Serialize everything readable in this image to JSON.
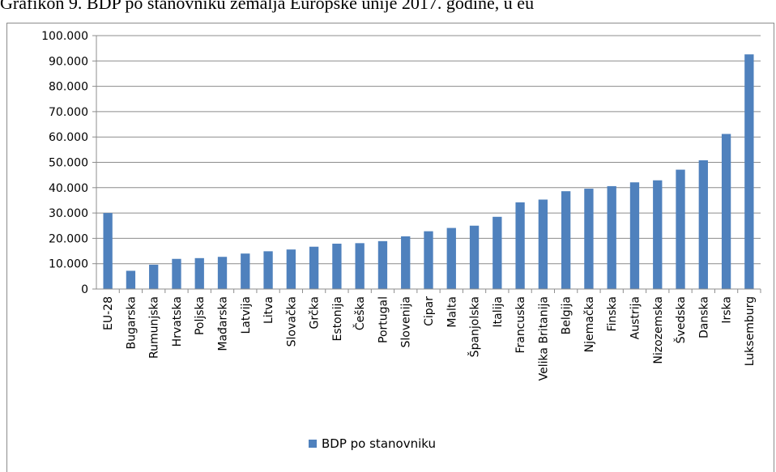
{
  "caption": "Grafikon 9. BDP po stanovniku zemalja Europske unije 2017. godine, u eu",
  "chart_data": {
    "type": "bar",
    "title": "",
    "xlabel": "",
    "ylabel": "",
    "ylim": [
      0,
      100000
    ],
    "yticks": [
      "0",
      "10.000",
      "20.000",
      "30.000",
      "40.000",
      "50.000",
      "60.000",
      "70.000",
      "80.000",
      "90.000",
      "100.000"
    ],
    "grid": true,
    "legend_position": "bottom",
    "color": "#4f81bd",
    "categories": [
      "EU-28",
      "Bugarska",
      "Rumunjska",
      "Hrvatska",
      "Poljska",
      "Mađarska",
      "Latvija",
      "Litva",
      "Slovačka",
      "Grčka",
      "Estonija",
      "Češka",
      "Portugal",
      "Slovenija",
      "Cipar",
      "Malta",
      "Španjolska",
      "Italija",
      "Francuska",
      "Velika Britanija",
      "Belgija",
      "Njemačka",
      "Finska",
      "Austrija",
      "Nizozemska",
      "Švedska",
      "Danska",
      "Irska",
      "Luksemburg"
    ],
    "series": [
      {
        "name": "BDP po stanovniku",
        "values": [
          30000,
          7200,
          9600,
          11900,
          12200,
          12700,
          14000,
          14900,
          15600,
          16700,
          17900,
          18100,
          18900,
          20800,
          22800,
          24100,
          25000,
          28500,
          34200,
          35300,
          38600,
          39600,
          40600,
          42100,
          42900,
          47100,
          50800,
          61200,
          92600
        ]
      }
    ]
  }
}
